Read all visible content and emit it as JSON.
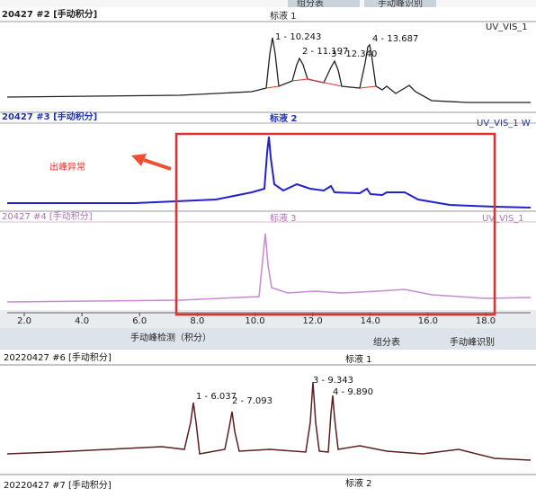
{
  "top_screen": {
    "tabs": [
      "组分表",
      "手动峰识别"
    ],
    "panels": [
      {
        "header": "20427 #2 [手动积分]",
        "sample": "标液 1",
        "channel": "UV_VIS_1",
        "peak_labels": [
          "1 - 10.243",
          "2 - 11.197",
          "3 - 12.340",
          "4 - 13.687"
        ]
      },
      {
        "header": "20427 #3 [手动积分]",
        "sample": "标液 2",
        "channel": "UV_VIS_1 W"
      },
      {
        "header": "20427 #4 [手动积分]",
        "sample": "标液 3",
        "channel": "UV_VIS_1"
      }
    ],
    "annotation": "出峰异常",
    "x_axis_ticks": [
      "2.0",
      "4.0",
      "6.0",
      "8.0",
      "10.0",
      "12.0",
      "14.0",
      "16.0",
      "18.0"
    ]
  },
  "bottom_screen": {
    "tabs": [
      "手动峰检测（积分）",
      "组分表",
      "手动峰识别"
    ],
    "header": "20220427 #6 [手动积分]",
    "sample": "标液 1",
    "peak_labels": [
      "1 - 6.037",
      "2 - 7.093",
      "3 - 9.343",
      "4 - 9.890"
    ],
    "footer_header": "20220427 #7 [手动积分]",
    "footer_sample": "标液 2"
  }
}
